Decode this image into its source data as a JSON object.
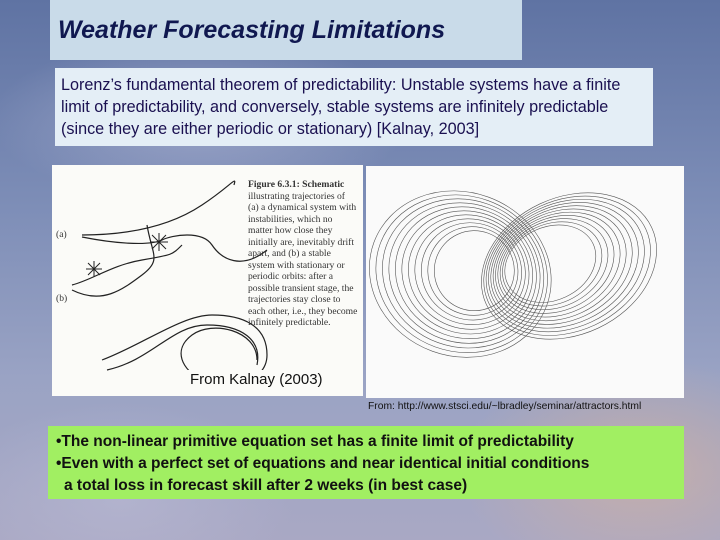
{
  "header": {
    "title": "Weather Forecasting Limitations"
  },
  "intro": "Lorenz’s fundamental theorem of predictability: Unstable systems have a finite limit of predictability, and conversely, stable systems are infinitely predictable (since they are either periodic or stationary)   [Kalnay, 2003]",
  "figure_left": {
    "caption_lines": [
      "Figure 6.3.1: Schematic",
      "illustrating trajectories of",
      "(a) a dynamical system with",
      "instabilities, which no",
      "matter how close they",
      "initially are, inevitably drift",
      "apart, and (b) a stable",
      "system with stationary or",
      "periodic orbits: after a",
      "possible transient stage, the",
      "trajectories stay close to",
      "each other, i.e., they become",
      "infinitely predictable."
    ],
    "labels": [
      "(a)",
      "(b)"
    ],
    "credit": "From Kalnay (2003)"
  },
  "figure_right": {
    "credit": "From: http://www.stsci.edu/~lbradley/seminar/attractors.html"
  },
  "bullets": [
    "•The non-linear primitive equation set has a finite limit of predictability",
    "•Even with a perfect set of equations and near identical initial conditions",
    "  a total loss in forecast skill after 2 weeks (in best case)"
  ]
}
